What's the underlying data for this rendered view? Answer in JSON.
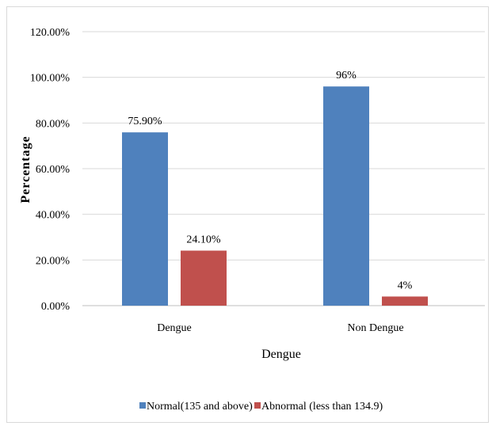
{
  "chart_data": {
    "type": "bar",
    "title": "",
    "xlabel": "Dengue",
    "ylabel": "Percentage",
    "categories": [
      "Dengue",
      "Non Dengue"
    ],
    "series": [
      {
        "name": "Normal(135 and above)",
        "color": "#4f81bd",
        "values": [
          75.9,
          96
        ],
        "labels": [
          "75.90%",
          "96%"
        ]
      },
      {
        "name": "Abnormal (less than 134.9)",
        "color": "#c0504d",
        "values": [
          24.1,
          4
        ],
        "labels": [
          "24.10%",
          "4%"
        ]
      }
    ],
    "ylim": [
      0,
      120
    ],
    "yticks": [
      0,
      20,
      40,
      60,
      80,
      100,
      120
    ],
    "ytick_labels": [
      "0.00%",
      "20.00%",
      "40.00%",
      "60.00%",
      "80.00%",
      "100.00%",
      "120.00%"
    ],
    "grid": true,
    "legend_position": "bottom"
  }
}
